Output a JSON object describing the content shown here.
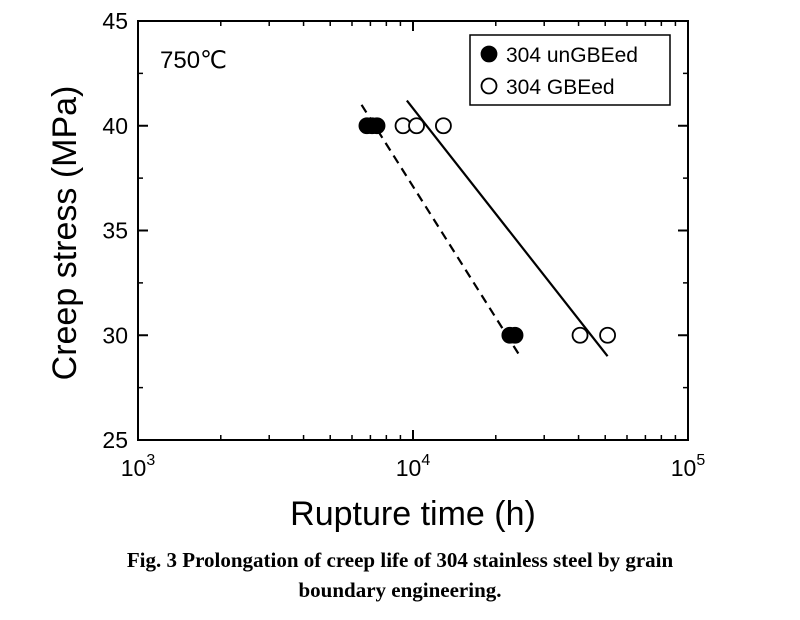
{
  "chart_data": {
    "type": "scatter",
    "x_scale": "log",
    "xlim": [
      1000,
      100000
    ],
    "ylim": [
      25,
      45
    ],
    "xlabel": "Rupture time (h)",
    "ylabel": "Creep stress (MPa)",
    "x_ticks": [
      {
        "value": 1000,
        "base": "10",
        "exp": "3"
      },
      {
        "value": 10000,
        "base": "10",
        "exp": "4"
      },
      {
        "value": 100000,
        "base": "10",
        "exp": "5"
      }
    ],
    "y_ticks": [
      {
        "value": 25,
        "label": "25"
      },
      {
        "value": 30,
        "label": "30"
      },
      {
        "value": 35,
        "label": "35"
      },
      {
        "value": 40,
        "label": "40"
      },
      {
        "value": 45,
        "label": "45"
      }
    ],
    "annotation": "750℃",
    "legend_position": "top-right",
    "series": [
      {
        "name": "304 unGBEed",
        "marker": "filled-circle",
        "line_style": "dashed",
        "points": [
          {
            "x": 6800,
            "y": 40
          },
          {
            "x": 7100,
            "y": 40
          },
          {
            "x": 7400,
            "y": 40
          },
          {
            "x": 22500,
            "y": 30
          },
          {
            "x": 23500,
            "y": 30
          }
        ],
        "fit_line": [
          {
            "x": 6500,
            "y": 41
          },
          {
            "x": 24500,
            "y": 29
          }
        ]
      },
      {
        "name": "304 GBEed",
        "marker": "open-circle",
        "line_style": "solid",
        "points": [
          {
            "x": 9200,
            "y": 40
          },
          {
            "x": 10300,
            "y": 40
          },
          {
            "x": 12900,
            "y": 40
          },
          {
            "x": 40500,
            "y": 30
          },
          {
            "x": 51000,
            "y": 30
          }
        ],
        "fit_line": [
          {
            "x": 9500,
            "y": 41.2
          },
          {
            "x": 51000,
            "y": 29
          }
        ]
      }
    ]
  },
  "caption": {
    "line1": "Fig. 3 Prolongation of creep life of 304 stainless steel by grain",
    "line2": "boundary engineering."
  }
}
